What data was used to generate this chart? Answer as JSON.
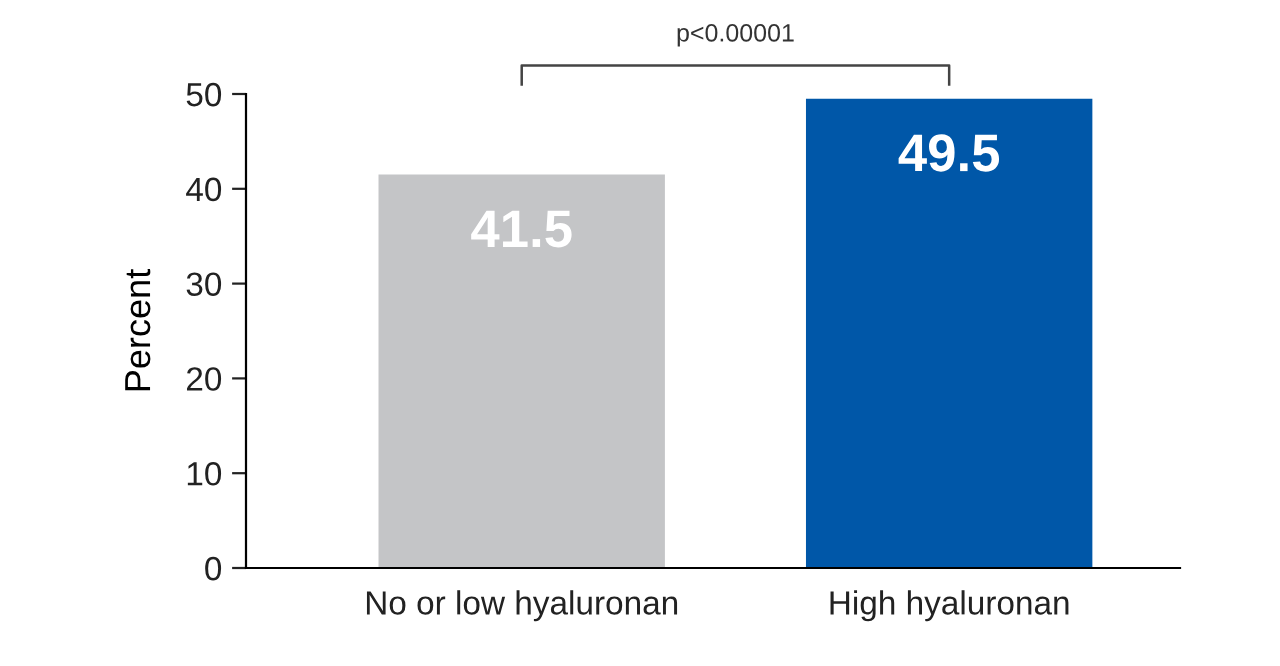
{
  "chart_data": {
    "type": "bar",
    "ylabel": "Percent",
    "categories": [
      "No or low hyaluronan",
      "High hyaluronan"
    ],
    "values": [
      41.5,
      49.5
    ],
    "colors": [
      "#c4c5c7",
      "#0057a8"
    ],
    "ylim": [
      0,
      50
    ],
    "yticks": [
      0,
      10,
      20,
      30,
      40,
      50
    ],
    "grid": false,
    "data_labels": true,
    "annotations": [
      "p<0.00001"
    ]
  }
}
